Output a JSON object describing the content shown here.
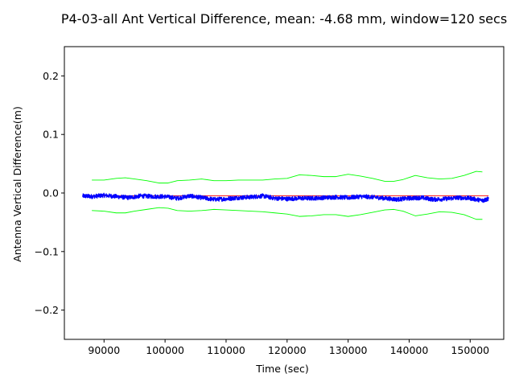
{
  "chart_data": {
    "type": "line",
    "title": "P4-03-all Ant Vertical Difference, mean: -4.68 mm, window=120 secs",
    "xlabel": "Time (sec)",
    "ylabel": "Antenna Vertical Difference(m)",
    "xlim": [
      83500,
      155500
    ],
    "ylim": [
      -0.25,
      0.25
    ],
    "xticks": [
      90000,
      100000,
      110000,
      120000,
      130000,
      140000,
      150000
    ],
    "yticks": [
      0.2,
      0.1,
      0.0,
      -0.1,
      -0.2
    ],
    "ytick_labels": [
      "0.2",
      "0.1",
      "0.0",
      "−0.1",
      "−0.2"
    ],
    "grid": false,
    "series": [
      {
        "color": "#0000ff",
        "style": "noisy",
        "x": [
          86500,
          88000,
          90000,
          92000,
          94000,
          96000,
          98000,
          100000,
          102000,
          104000,
          106000,
          108000,
          110000,
          112000,
          114000,
          116000,
          118000,
          120000,
          122000,
          124000,
          126000,
          128000,
          130000,
          132000,
          134000,
          136000,
          138000,
          140000,
          142000,
          144000,
          146000,
          148000,
          150000,
          152000,
          153000
        ],
        "y": [
          -0.005,
          -0.006,
          -0.004,
          -0.006,
          -0.008,
          -0.005,
          -0.006,
          -0.006,
          -0.009,
          -0.005,
          -0.008,
          -0.011,
          -0.01,
          -0.008,
          -0.007,
          -0.005,
          -0.009,
          -0.01,
          -0.009,
          -0.009,
          -0.008,
          -0.007,
          -0.008,
          -0.006,
          -0.007,
          -0.009,
          -0.011,
          -0.009,
          -0.008,
          -0.011,
          -0.01,
          -0.008,
          -0.009,
          -0.013,
          -0.01
        ]
      },
      {
        "color": "#ff0000",
        "style": "line",
        "x": [
          86500,
          153000
        ],
        "y": [
          -0.0047,
          -0.0047
        ]
      },
      {
        "color": "#00ff00",
        "style": "line",
        "x": [
          88000,
          90000,
          92000,
          93500,
          95000,
          97000,
          99000,
          100500,
          102000,
          104000,
          106000,
          108000,
          110000,
          112000,
          114000,
          116000,
          118000,
          120000,
          122000,
          124000,
          126000,
          128000,
          130000,
          132000,
          134000,
          136000,
          137500,
          139000,
          141000,
          143000,
          145000,
          147000,
          149000,
          151000,
          152000
        ],
        "y": [
          0.022,
          0.022,
          0.025,
          0.026,
          0.024,
          0.021,
          0.017,
          0.017,
          0.021,
          0.022,
          0.024,
          0.021,
          0.021,
          0.022,
          0.022,
          0.022,
          0.024,
          0.025,
          0.031,
          0.03,
          0.028,
          0.028,
          0.032,
          0.029,
          0.025,
          0.02,
          0.02,
          0.023,
          0.03,
          0.026,
          0.024,
          0.025,
          0.03,
          0.037,
          0.036
        ]
      },
      {
        "color": "#00ff00",
        "style": "line",
        "x": [
          88000,
          90000,
          92000,
          93500,
          95000,
          97000,
          99000,
          100500,
          102000,
          104000,
          106000,
          108000,
          110000,
          112000,
          114000,
          116000,
          118000,
          120000,
          122000,
          124000,
          126000,
          128000,
          130000,
          132000,
          134000,
          136000,
          137500,
          139000,
          141000,
          143000,
          145000,
          147000,
          149000,
          151000,
          152000
        ],
        "y": [
          -0.03,
          -0.031,
          -0.034,
          -0.034,
          -0.031,
          -0.028,
          -0.025,
          -0.026,
          -0.03,
          -0.031,
          -0.03,
          -0.028,
          -0.029,
          -0.03,
          -0.031,
          -0.032,
          -0.034,
          -0.036,
          -0.04,
          -0.039,
          -0.037,
          -0.037,
          -0.04,
          -0.037,
          -0.033,
          -0.029,
          -0.028,
          -0.031,
          -0.039,
          -0.036,
          -0.032,
          -0.033,
          -0.037,
          -0.045,
          -0.045
        ]
      }
    ]
  }
}
